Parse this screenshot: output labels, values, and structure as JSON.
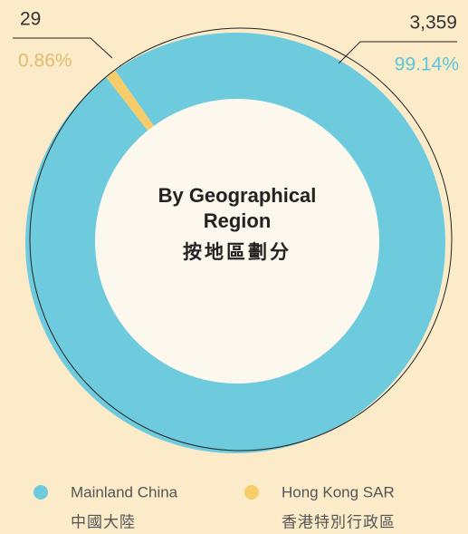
{
  "chart_data": {
    "type": "donut",
    "title": "By Geographical Region",
    "subtitle": "按地區劃分",
    "categories": [
      "Mainland China",
      "Hong Kong SAR"
    ],
    "categories_zh": [
      "中國大陸",
      "香港特別行政區"
    ],
    "values": [
      3359,
      29
    ],
    "value_labels": [
      "3,359",
      "29"
    ],
    "shares": [
      99.14,
      0.86
    ],
    "share_labels": [
      "99.14%",
      "0.86%"
    ],
    "colors": [
      "#6dcbdd",
      "#f7cd6b"
    ]
  }
}
